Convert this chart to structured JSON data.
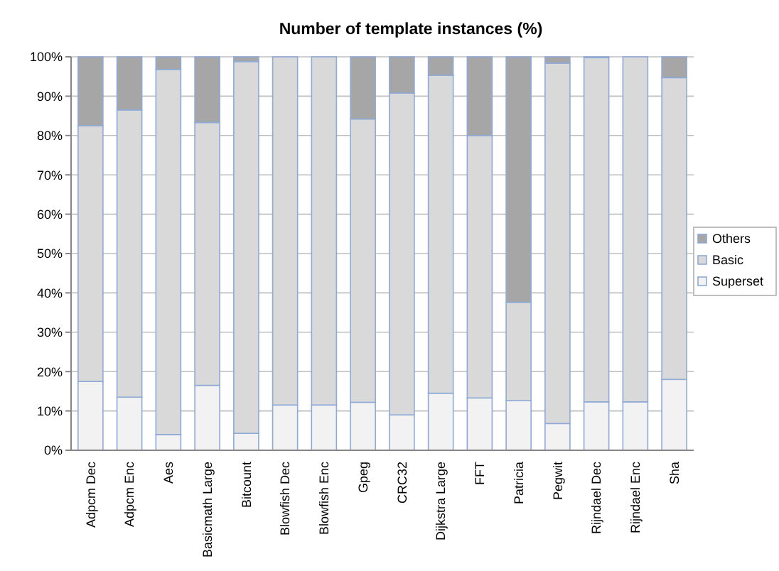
{
  "chart_data": {
    "type": "bar",
    "title": "Number of template instances (%)",
    "stacked": true,
    "categories": [
      "Adpcm Dec",
      "Adpcm Enc",
      "Aes",
      "Basicmath Large",
      "Bitcount",
      "Blowfish Dec",
      "Blowfish Enc",
      "Gpeg",
      "CRC32",
      "Dijkstra Large",
      "FFT",
      "Patricia",
      "Pegwit",
      "Rijndael Dec",
      "Rijndael Enc",
      "Sha"
    ],
    "series": [
      {
        "name": "Superset",
        "color": "#f2f2f2",
        "values": [
          17.5,
          13.5,
          4,
          16.5,
          4.3,
          11.5,
          11.5,
          12.2,
          9,
          14.5,
          13.3,
          12.6,
          6.8,
          12.3,
          12.3,
          18
        ]
      },
      {
        "name": "Basic",
        "color": "#d9d9d9",
        "values": [
          65,
          73,
          92.8,
          66.8,
          94.5,
          88.5,
          88.5,
          72,
          81.8,
          80.8,
          66.7,
          25,
          91.6,
          87.5,
          87.7,
          76.7
        ]
      },
      {
        "name": "Others",
        "color": "#a6a6a6",
        "values": [
          17.5,
          13.5,
          3.2,
          16.7,
          1.2,
          0,
          0,
          15.8,
          9.2,
          4.7,
          20,
          62.4,
          1.6,
          0.2,
          0,
          5.3
        ]
      }
    ],
    "ylim": [
      0,
      100
    ],
    "yticks": [
      {
        "value": 0,
        "label": "0%"
      },
      {
        "value": 10,
        "label": "10%"
      },
      {
        "value": 20,
        "label": "20%"
      },
      {
        "value": 30,
        "label": "30%"
      },
      {
        "value": 40,
        "label": "40%"
      },
      {
        "value": 50,
        "label": "50%"
      },
      {
        "value": 60,
        "label": "60%"
      },
      {
        "value": 70,
        "label": "70%"
      },
      {
        "value": 80,
        "label": "80%"
      },
      {
        "value": 90,
        "label": "90%"
      },
      {
        "value": 100,
        "label": "100%"
      }
    ],
    "grid": "y",
    "legend": "right"
  }
}
